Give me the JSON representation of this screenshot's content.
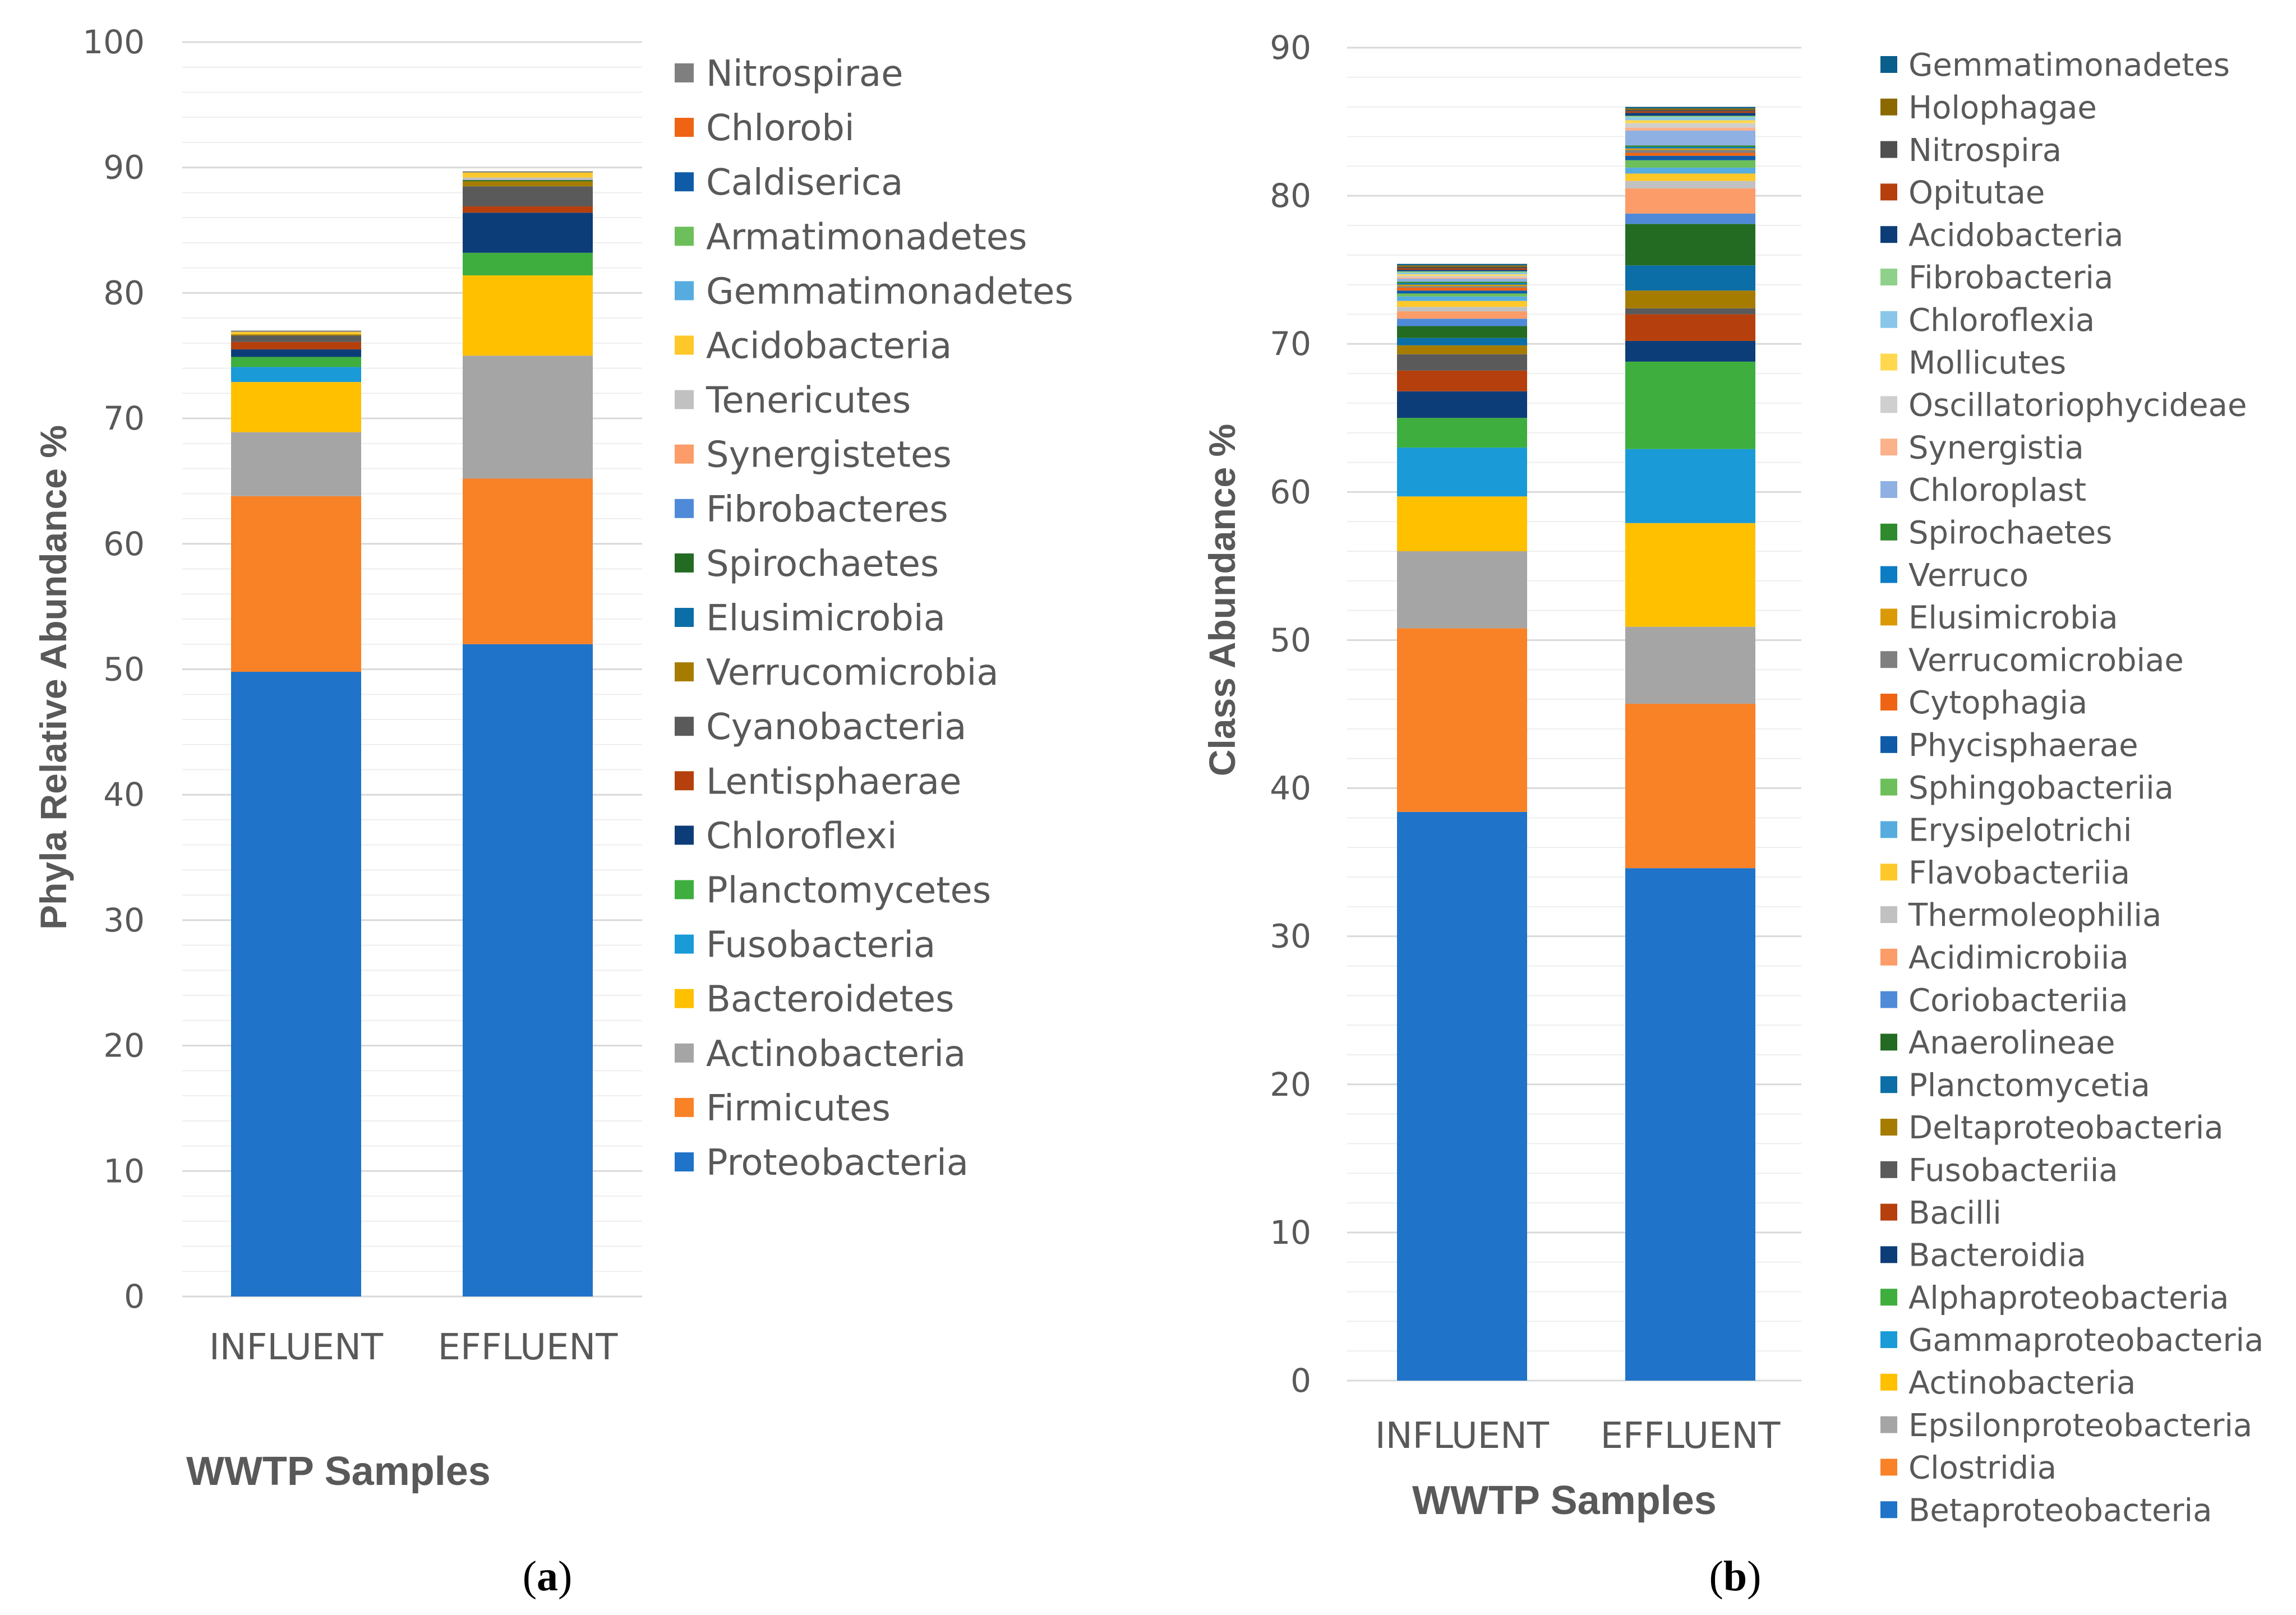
{
  "chart_data": [
    {
      "type": "bar",
      "stacked": true,
      "panel_label": {
        "open": "(",
        "letter": "a",
        "close": ")"
      },
      "title": "",
      "xlabel": "WWTP Samples",
      "ylabel": "Phyla Relative Abundance %",
      "ylim": [
        0,
        100
      ],
      "yticks": [
        0,
        10,
        20,
        30,
        40,
        50,
        60,
        70,
        80,
        90,
        100
      ],
      "minor_step": 2,
      "categories": [
        "INFLUENT",
        "EFFLUENT"
      ],
      "legend_position": "right",
      "series": [
        {
          "name": "Proteobacteria",
          "color": "#1f73c9",
          "values": [
            49.8,
            52.0
          ]
        },
        {
          "name": "Firmicutes",
          "color": "#f98126",
          "values": [
            14.0,
            13.2
          ]
        },
        {
          "name": "Actinobacteria",
          "color": "#a5a5a5",
          "values": [
            5.1,
            9.8
          ]
        },
        {
          "name": "Bacteroidetes",
          "color": "#ffc000",
          "values": [
            4.0,
            6.4
          ]
        },
        {
          "name": "Fusobacteria",
          "color": "#1a9bd7",
          "values": [
            1.2,
            0.0
          ]
        },
        {
          "name": "Planctomycetes",
          "color": "#3eae3e",
          "values": [
            0.8,
            1.8
          ]
        },
        {
          "name": "Chloroflexi",
          "color": "#0d3d78",
          "values": [
            0.6,
            3.2
          ]
        },
        {
          "name": "Lentisphaerae",
          "color": "#b5400d",
          "values": [
            0.6,
            0.5
          ]
        },
        {
          "name": "Cyanobacteria",
          "color": "#5a5a5a",
          "values": [
            0.5,
            1.6
          ]
        },
        {
          "name": "Verrucomicrobia",
          "color": "#a67c00",
          "values": [
            0.1,
            0.4
          ]
        },
        {
          "name": "Elusimicrobia",
          "color": "#0b6ea6",
          "values": [
            0.0,
            0.0
          ]
        },
        {
          "name": "Spirochaetes",
          "color": "#236b22",
          "values": [
            0.0,
            0.1
          ]
        },
        {
          "name": "Fibrobacteres",
          "color": "#4f8ad8",
          "values": [
            0.0,
            0.0
          ]
        },
        {
          "name": "Synergistetes",
          "color": "#fc9c68",
          "values": [
            0.0,
            0.0
          ]
        },
        {
          "name": "Tenericutes",
          "color": "#c1c1c1",
          "values": [
            0.0,
            0.2
          ]
        },
        {
          "name": "Acidobacteria",
          "color": "#ffc82a",
          "values": [
            0.2,
            0.4
          ]
        },
        {
          "name": "Gemmatimonadetes",
          "color": "#57acdf",
          "values": [
            0.0,
            0.0
          ]
        },
        {
          "name": "Armatimonadetes",
          "color": "#6dbf5b",
          "values": [
            0.0,
            0.0
          ]
        },
        {
          "name": "Caldiserica",
          "color": "#0f5ba8",
          "values": [
            0.0,
            0.0
          ]
        },
        {
          "name": "Chlorobi",
          "color": "#ef6414",
          "values": [
            0.0,
            0.0
          ]
        },
        {
          "name": "Nitrospirae",
          "color": "#7f7f7f",
          "values": [
            0.1,
            0.1
          ]
        }
      ]
    },
    {
      "type": "bar",
      "stacked": true,
      "panel_label": {
        "open": "(",
        "letter": "b",
        "close": ")"
      },
      "title": "",
      "xlabel": "WWTP Samples",
      "ylabel": "Class Abundance %",
      "ylim": [
        0,
        90
      ],
      "yticks": [
        0,
        10,
        20,
        30,
        40,
        50,
        60,
        70,
        80,
        90
      ],
      "minor_step": 2,
      "categories": [
        "INFLUENT",
        "EFFLUENT"
      ],
      "legend_position": "right",
      "series": [
        {
          "name": "Betaproteobacteria",
          "color": "#1f73c9",
          "values": [
            38.4,
            34.6
          ]
        },
        {
          "name": "Clostridia",
          "color": "#f98126",
          "values": [
            12.4,
            11.1
          ]
        },
        {
          "name": "Epsilonproteobacteria",
          "color": "#a5a5a5",
          "values": [
            5.2,
            5.2
          ]
        },
        {
          "name": "Actinobacteria",
          "color": "#ffc000",
          "values": [
            3.7,
            7.0
          ]
        },
        {
          "name": "Gammaproteobacteria",
          "color": "#1a9bd7",
          "values": [
            3.3,
            5.0
          ]
        },
        {
          "name": "Alphaproteobacteria",
          "color": "#3eae3e",
          "values": [
            2.0,
            5.9
          ]
        },
        {
          "name": "Bacteroidia",
          "color": "#0d3d78",
          "values": [
            1.8,
            1.4
          ]
        },
        {
          "name": "Bacilli",
          "color": "#b5400d",
          "values": [
            1.4,
            1.8
          ]
        },
        {
          "name": "Fusobacteriia",
          "color": "#5a5a5a",
          "values": [
            1.1,
            0.4
          ]
        },
        {
          "name": "Deltaproteobacteria",
          "color": "#a67c00",
          "values": [
            0.6,
            1.2
          ]
        },
        {
          "name": "Planctomycetia",
          "color": "#0b6ea6",
          "values": [
            0.5,
            1.7
          ]
        },
        {
          "name": "Anaerolineae",
          "color": "#236b22",
          "values": [
            0.8,
            2.8
          ]
        },
        {
          "name": "Coriobacteriia",
          "color": "#4f8ad8",
          "values": [
            0.5,
            0.7
          ]
        },
        {
          "name": "Acidimicrobiia",
          "color": "#fc9c68",
          "values": [
            0.5,
            1.7
          ]
        },
        {
          "name": "Thermoleophilia",
          "color": "#c1c1c1",
          "values": [
            0.3,
            0.5
          ]
        },
        {
          "name": "Flavobacteriia",
          "color": "#ffc82a",
          "values": [
            0.4,
            0.5
          ]
        },
        {
          "name": "Erysipelotrichi",
          "color": "#57acdf",
          "values": [
            0.3,
            0.4
          ]
        },
        {
          "name": "Sphingobacteriia",
          "color": "#6dbf5b",
          "values": [
            0.2,
            0.5
          ]
        },
        {
          "name": "Phycisphaerae",
          "color": "#0f5ba8",
          "values": [
            0.2,
            0.3
          ]
        },
        {
          "name": "Cytophagia",
          "color": "#ef6414",
          "values": [
            0.2,
            0.2
          ]
        },
        {
          "name": "Verrucomicrobiae",
          "color": "#7f7f7f",
          "values": [
            0.1,
            0.2
          ]
        },
        {
          "name": "Elusimicrobia",
          "color": "#d99a05",
          "values": [
            0.1,
            0.1
          ]
        },
        {
          "name": "Verruco",
          "color": "#0c7cc4",
          "values": [
            0.1,
            0.1
          ]
        },
        {
          "name": "Spirochaetes",
          "color": "#2f8a2e",
          "values": [
            0.1,
            0.1
          ]
        },
        {
          "name": "Chloroplast",
          "color": "#8fb0e3",
          "values": [
            0.2,
            1.0
          ]
        },
        {
          "name": "Synergistia",
          "color": "#fbb18a",
          "values": [
            0.1,
            0.2
          ]
        },
        {
          "name": "Oscillatoriophycideae",
          "color": "#cfcfcf",
          "values": [
            0.1,
            0.3
          ]
        },
        {
          "name": "Mollicutes",
          "color": "#ffd84f",
          "values": [
            0.1,
            0.2
          ]
        },
        {
          "name": "Chloroflexia",
          "color": "#8ac6ea",
          "values": [
            0.1,
            0.2
          ]
        },
        {
          "name": "Fibrobacteria",
          "color": "#8fd18a",
          "values": [
            0.1,
            0.1
          ]
        },
        {
          "name": "Acidobacteria",
          "color": "#0d3d78",
          "values": [
            0.1,
            0.2
          ]
        },
        {
          "name": "Opitutae",
          "color": "#b5400d",
          "values": [
            0.1,
            0.1
          ]
        },
        {
          "name": "Nitrospira",
          "color": "#4f4f4f",
          "values": [
            0.1,
            0.1
          ]
        },
        {
          "name": "Holophagae",
          "color": "#8c6900",
          "values": [
            0.1,
            0.1
          ]
        },
        {
          "name": "Gemmatimonadetes",
          "color": "#0a5e8c",
          "values": [
            0.1,
            0.1
          ]
        }
      ]
    }
  ]
}
